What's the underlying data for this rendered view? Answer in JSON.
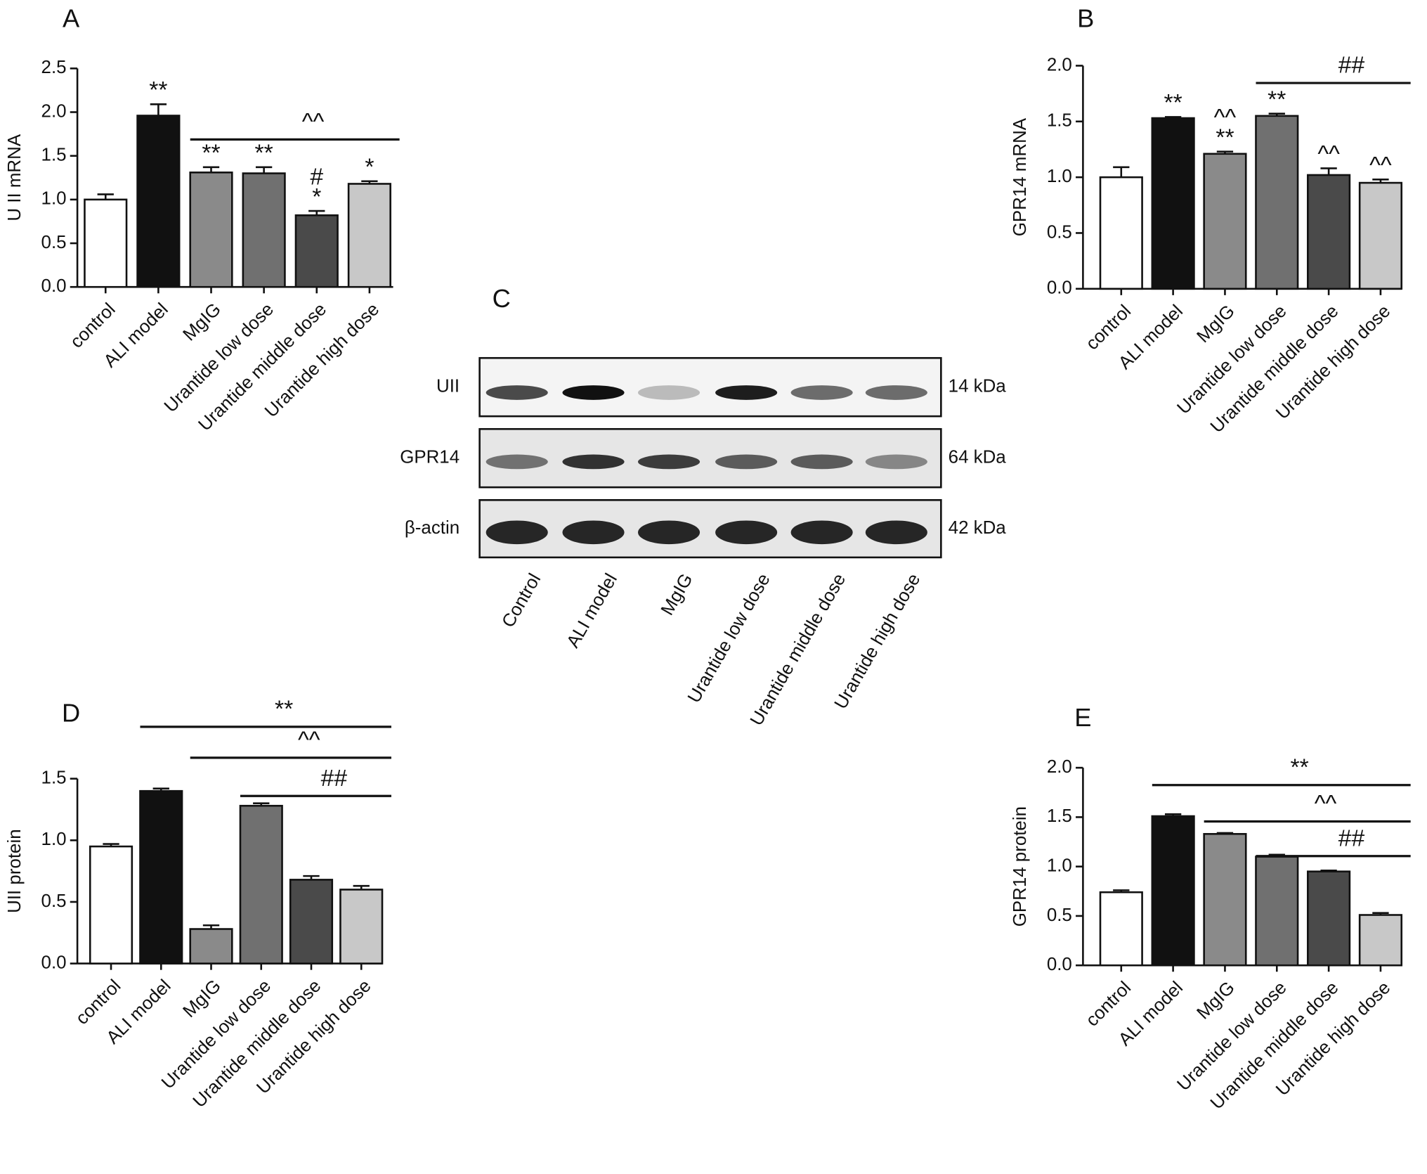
{
  "chart_data": [
    {
      "type": "bar",
      "label": "A",
      "y_label": "U II mRNA",
      "categories": [
        "control",
        "ALI model",
        "MgIG",
        "Urantide low dose",
        "Urantide middle dose",
        "Urantide high dose"
      ],
      "values": [
        1.0,
        1.96,
        1.31,
        1.3,
        0.82,
        1.18
      ],
      "error": [
        0.06,
        0.13,
        0.06,
        0.07,
        0.05,
        0.03
      ],
      "colors": [
        "#ffffff",
        "#111111",
        "#8a8a8a",
        "#707070",
        "#4a4a4a",
        "#c8c8c8"
      ],
      "ylim": [
        0,
        2.5
      ],
      "yticks": [
        {
          "value": 0,
          "label": "0.0"
        },
        0.5,
        {
          "value": 1,
          "label": "1.0"
        },
        1.5,
        {
          "value": 2,
          "label": "2.0"
        },
        2.5
      ],
      "bar_annotations": [
        null,
        [
          "**"
        ],
        [
          "**"
        ],
        [
          "**"
        ],
        [
          "#",
          "*"
        ],
        [
          "*"
        ]
      ],
      "comparison_lines": [
        {
          "text": "^^",
          "from": "MgIG",
          "to": "Urantide high dose"
        }
      ]
    },
    {
      "type": "bar",
      "label": "B",
      "y_label": "GPR14 mRNA",
      "categories": [
        "control",
        "ALI model",
        "MgIG",
        "Urantide low dose",
        "Urantide middle dose",
        "Urantide high dose"
      ],
      "values": [
        1.0,
        1.53,
        1.21,
        1.55,
        1.02,
        0.95
      ],
      "error": [
        0.09,
        0.01,
        0.02,
        0.02,
        0.06,
        0.03
      ],
      "colors": [
        "#ffffff",
        "#111111",
        "#8a8a8a",
        "#707070",
        "#4a4a4a",
        "#c8c8c8"
      ],
      "ylim": [
        0,
        2.0
      ],
      "yticks": [
        {
          "value": 0,
          "label": "0.0"
        },
        0.5,
        {
          "value": 1,
          "label": "1.0"
        },
        1.5,
        {
          "value": 2,
          "label": "2.0"
        }
      ],
      "bar_annotations": [
        null,
        [
          "**"
        ],
        [
          "^^",
          "**"
        ],
        [
          "**"
        ],
        [
          "^^"
        ],
        [
          "^^"
        ]
      ],
      "comparison_lines": [
        {
          "text": "##",
          "from": "Urantide low dose",
          "to": "Urantide high dose"
        }
      ]
    },
    {
      "type": "bar",
      "label": "D",
      "y_label": "UII protein",
      "categories": [
        "control",
        "ALI model",
        "MgIG",
        "Urantide low dose",
        "Urantide middle dose",
        "Urantide high dose"
      ],
      "values": [
        0.95,
        1.4,
        0.28,
        1.28,
        0.68,
        0.6
      ],
      "error": [
        0.02,
        0.02,
        0.03,
        0.02,
        0.03,
        0.03
      ],
      "colors": [
        "#ffffff",
        "#111111",
        "#8a8a8a",
        "#707070",
        "#4a4a4a",
        "#c8c8c8"
      ],
      "ylim": [
        0,
        1.5
      ],
      "yticks": [
        {
          "value": 0,
          "label": "0.0"
        },
        0.5,
        {
          "value": 1,
          "label": "1.0"
        },
        1.5
      ],
      "bar_annotations": [
        null,
        null,
        null,
        null,
        null,
        null
      ],
      "comparison_lines": [
        {
          "text": "**",
          "from": "ALI model",
          "to": "Urantide high dose"
        },
        {
          "text": "^^",
          "from": "MgIG",
          "to": "Urantide high dose"
        },
        {
          "text": "##",
          "from": "Urantide low dose",
          "to": "Urantide high dose"
        }
      ]
    },
    {
      "type": "bar",
      "label": "E",
      "y_label": "GPR14 protein",
      "categories": [
        "control",
        "ALI model",
        "MgIG",
        "Urantide low dose",
        "Urantide middle dose",
        "Urantide high dose"
      ],
      "values": [
        0.74,
        1.51,
        1.33,
        1.1,
        0.95,
        0.51
      ],
      "error": [
        0.02,
        0.02,
        0.01,
        0.02,
        0.01,
        0.02
      ],
      "colors": [
        "#ffffff",
        "#111111",
        "#8a8a8a",
        "#707070",
        "#4a4a4a",
        "#c8c8c8"
      ],
      "ylim": [
        0,
        2.0
      ],
      "yticks": [
        {
          "value": 0,
          "label": "0.0"
        },
        0.5,
        {
          "value": 1,
          "label": "1.0"
        },
        1.5,
        {
          "value": 2,
          "label": "2.0"
        }
      ],
      "bar_annotations": [
        null,
        null,
        null,
        null,
        null,
        null
      ],
      "comparison_lines": [
        {
          "text": "**",
          "from": "ALI model",
          "to": "Urantide high dose"
        },
        {
          "text": "^^",
          "from": "MgIG",
          "to": "Urantide high dose"
        },
        {
          "text": "##",
          "from": "Urantide low dose",
          "to": "Urantide high dose"
        }
      ]
    }
  ],
  "blot": {
    "label": "C",
    "rows": [
      {
        "name": "UII",
        "size": "14 kDa"
      },
      {
        "name": "GPR14",
        "size": "64 kDa"
      },
      {
        "name": "β-actin",
        "size": "42 kDa"
      }
    ],
    "lanes": [
      "Control",
      "ALI model",
      "MgIG",
      "Urantide low dose",
      "Urantide middle dose",
      "Urantide high dose"
    ]
  }
}
